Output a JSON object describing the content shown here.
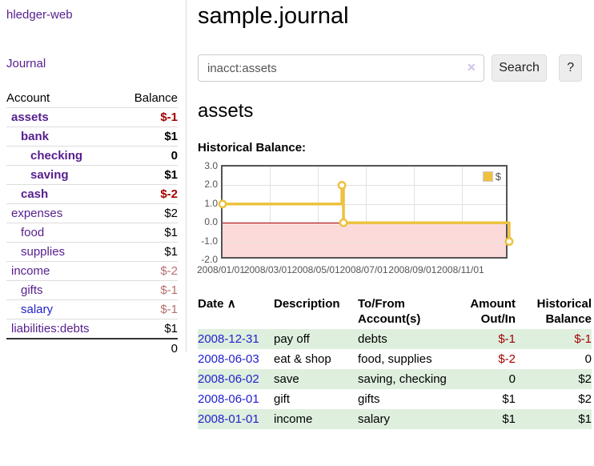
{
  "app": {
    "brand": "hledger-web"
  },
  "sidebar": {
    "nav_journal": "Journal",
    "accounts_header": {
      "account": "Account",
      "balance": "Balance"
    },
    "accounts": [
      {
        "name": "assets",
        "indent": 0,
        "bold": true,
        "balance": "$-1",
        "balance_style": "neg-strong"
      },
      {
        "name": "bank",
        "indent": 1,
        "bold": true,
        "balance": "$1",
        "balance_style": "pos"
      },
      {
        "name": "checking",
        "indent": 2,
        "bold": true,
        "balance": "0",
        "balance_style": "pos"
      },
      {
        "name": "saving",
        "indent": 2,
        "bold": true,
        "balance": "$1",
        "balance_style": "pos"
      },
      {
        "name": "cash",
        "indent": 1,
        "bold": true,
        "balance": "$-2",
        "balance_style": "neg-strong"
      },
      {
        "name": "expenses",
        "indent": 0,
        "bold": false,
        "balance": "$2",
        "balance_style": "pos"
      },
      {
        "name": "food",
        "indent": 1,
        "bold": false,
        "balance": "$1",
        "balance_style": "pos"
      },
      {
        "name": "supplies",
        "indent": 1,
        "bold": false,
        "balance": "$1",
        "balance_style": "pos"
      },
      {
        "name": "income",
        "indent": 0,
        "bold": false,
        "balance": "$-2",
        "balance_style": "neg-soft"
      },
      {
        "name": "gifts",
        "indent": 1,
        "bold": false,
        "balance": "$-1",
        "balance_style": "neg-soft"
      },
      {
        "name": "salary",
        "indent": 1,
        "bold": false,
        "balance": "$-1",
        "balance_style": "neg-soft",
        "link_color": "blue"
      },
      {
        "name": "liabilities:debts",
        "indent": 0,
        "bold": false,
        "balance": "$1",
        "balance_style": "pos"
      }
    ],
    "total": "0"
  },
  "header": {
    "title": "sample.journal"
  },
  "search": {
    "value": "inacct:assets",
    "clear_icon": "✕",
    "button_label": "Search",
    "help_label": "?"
  },
  "account_page": {
    "title": "assets",
    "chart_label": "Historical Balance:"
  },
  "chart_data": {
    "type": "line",
    "step": true,
    "title": "Historical Balance:",
    "series": [
      {
        "name": "$",
        "color": "#EDC240",
        "points": [
          [
            "2008-01-01",
            1
          ],
          [
            "2008-06-01",
            2
          ],
          [
            "2008-06-03",
            0
          ],
          [
            "2008-12-31",
            -1
          ]
        ]
      }
    ],
    "x_start": "2008-01-01",
    "x_end": "2008-12-31",
    "x_ticks": [
      "2008/01/01",
      "2008/03/01",
      "2008/05/01",
      "2008/07/01",
      "2008/09/01",
      "2008/11/01"
    ],
    "y_ticks": [
      "3.0",
      "2.0",
      "1.0",
      "0.0",
      "-1.0",
      "-2.0"
    ],
    "ylim": [
      -2,
      3
    ],
    "grid": true,
    "legend_position": "top-right",
    "negative_region_color": "#fcdada",
    "zero_line_color": "#a40000"
  },
  "register": {
    "columns": [
      "Date",
      "Description",
      "To/From Account(s)",
      "Amount Out/In",
      "Historical Balance"
    ],
    "sort_indicator": "∧",
    "rows": [
      {
        "date": "2008-12-31",
        "description": "pay off",
        "accounts": "debts",
        "amount": "$-1",
        "amount_neg": true,
        "balance": "$-1",
        "balance_neg": true
      },
      {
        "date": "2008-06-03",
        "description": "eat & shop",
        "accounts": "food, supplies",
        "amount": "$-2",
        "amount_neg": true,
        "balance": "0",
        "balance_neg": false
      },
      {
        "date": "2008-06-02",
        "description": "save",
        "accounts": "saving, checking",
        "amount": "0",
        "amount_neg": false,
        "balance": "$2",
        "balance_neg": false
      },
      {
        "date": "2008-06-01",
        "description": "gift",
        "accounts": "gifts",
        "amount": "$1",
        "amount_neg": false,
        "balance": "$2",
        "balance_neg": false
      },
      {
        "date": "2008-01-01",
        "description": "income",
        "accounts": "salary",
        "amount": "$1",
        "amount_neg": false,
        "balance": "$1",
        "balance_neg": false
      }
    ]
  }
}
